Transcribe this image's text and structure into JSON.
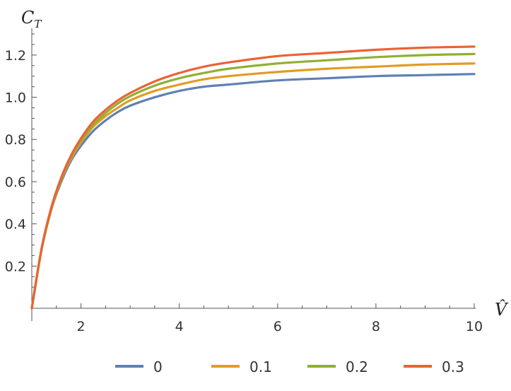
{
  "chart_data": {
    "type": "line",
    "title": "",
    "xlabel": "V̂",
    "ylabel": "C",
    "ylabel_sub": "T",
    "xlim": [
      1,
      10
    ],
    "ylim": [
      0,
      1.3
    ],
    "x_ticks": [
      2,
      4,
      6,
      8,
      10
    ],
    "y_ticks": [
      0.2,
      0.4,
      0.6,
      0.8,
      1.0,
      1.2
    ],
    "x_tick_labels": [
      "2",
      "4",
      "6",
      "8",
      "10"
    ],
    "y_tick_labels": [
      "0.2",
      "0.4",
      "0.6",
      "0.8",
      "1.0",
      "1.2"
    ],
    "legend_position": "bottom",
    "x": [
      1.0,
      1.2,
      1.4,
      1.6,
      1.8,
      2.0,
      2.25,
      2.5,
      2.75,
      3.0,
      3.5,
      4.0,
      4.5,
      5.0,
      6.0,
      7.0,
      8.0,
      9.0,
      10.0
    ],
    "series": [
      {
        "name": "0",
        "color": "#5e81b5",
        "values": [
          0.0,
          0.28,
          0.47,
          0.6,
          0.7,
          0.77,
          0.84,
          0.89,
          0.93,
          0.96,
          1.0,
          1.03,
          1.05,
          1.06,
          1.08,
          1.09,
          1.1,
          1.105,
          1.11
        ]
      },
      {
        "name": "0.1",
        "color": "#e19c24",
        "values": [
          0.0,
          0.28,
          0.47,
          0.61,
          0.71,
          0.785,
          0.86,
          0.91,
          0.95,
          0.985,
          1.03,
          1.06,
          1.085,
          1.1,
          1.12,
          1.135,
          1.145,
          1.155,
          1.16
        ]
      },
      {
        "name": "0.2",
        "color": "#8fb032",
        "values": [
          0.0,
          0.28,
          0.475,
          0.615,
          0.72,
          0.795,
          0.87,
          0.925,
          0.97,
          1.005,
          1.055,
          1.09,
          1.115,
          1.135,
          1.16,
          1.175,
          1.19,
          1.2,
          1.205
        ]
      },
      {
        "name": "0.3",
        "color": "#eb6235",
        "values": [
          0.0,
          0.285,
          0.48,
          0.62,
          0.725,
          0.805,
          0.885,
          0.94,
          0.985,
          1.02,
          1.075,
          1.115,
          1.145,
          1.165,
          1.195,
          1.21,
          1.225,
          1.235,
          1.24
        ]
      }
    ]
  }
}
